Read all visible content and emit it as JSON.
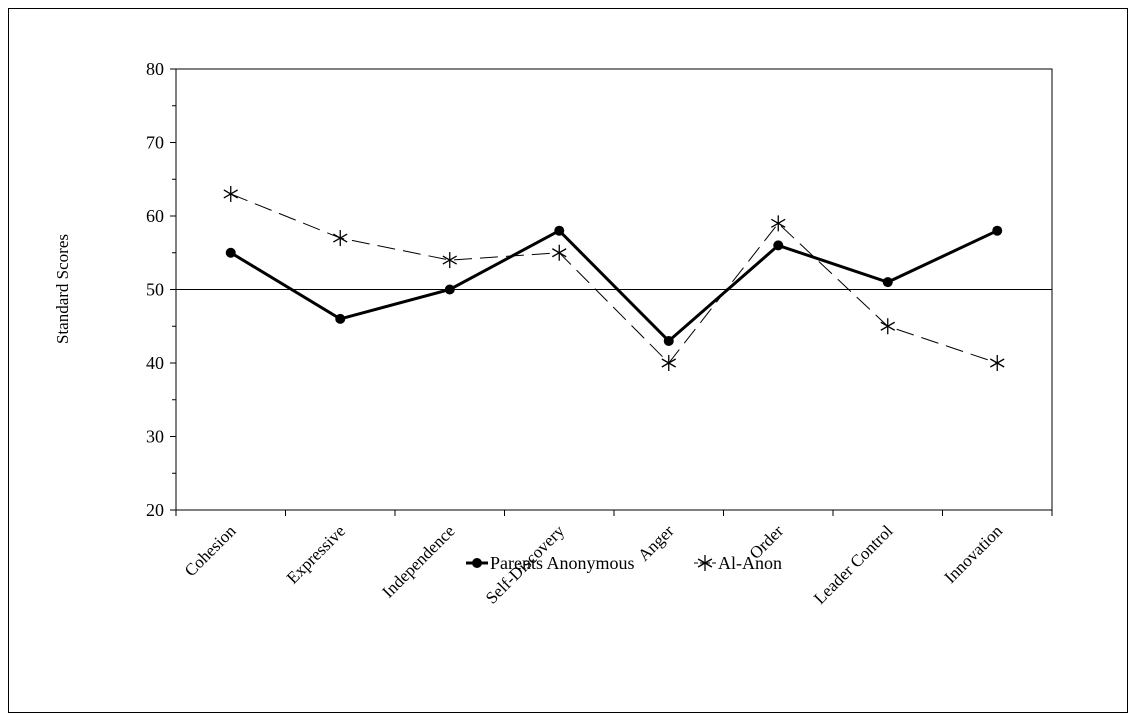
{
  "chart_data": {
    "type": "line",
    "categories": [
      "Cohesion",
      "Expressive",
      "Independence",
      "Self-Discovery",
      "Anger",
      "Order",
      "Leader Control",
      "Innovation"
    ],
    "series": [
      {
        "name": "Parents Anonymous",
        "values": [
          55,
          46,
          50,
          58,
          43,
          56,
          51,
          58
        ],
        "color": "#000000",
        "style": "solid",
        "marker": "circle"
      },
      {
        "name": "Al-Anon",
        "values": [
          63,
          57,
          54,
          55,
          40,
          59,
          45,
          40
        ],
        "color": "#000000",
        "style": "dashed",
        "marker": "asterisk"
      }
    ],
    "ylabel": "Standard Scores",
    "xlabel": "",
    "ylim": [
      20,
      80
    ],
    "yticks": [
      20,
      30,
      40,
      50,
      60,
      70,
      80
    ],
    "reference_line": 50,
    "grid": false,
    "legend_position": "bottom"
  }
}
